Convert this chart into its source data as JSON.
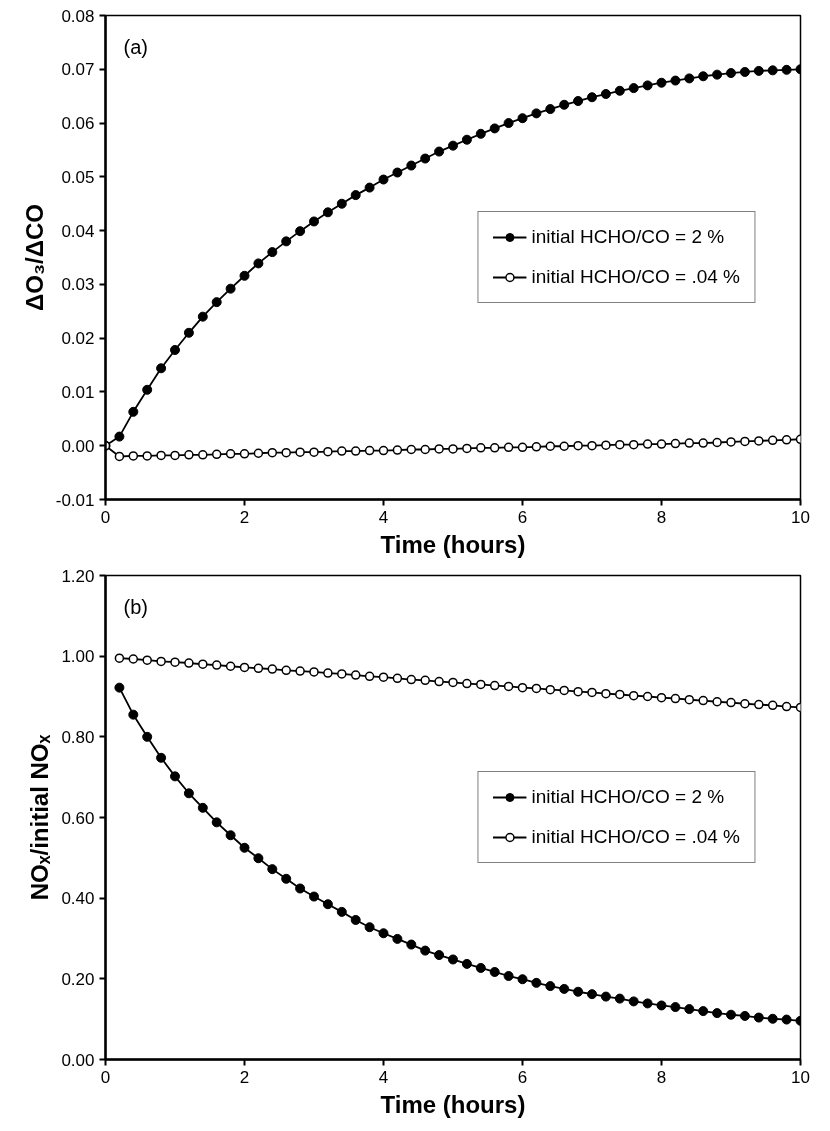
{
  "chart_data": [
    {
      "type": "line",
      "annotations": [
        "(a)"
      ],
      "xlabel": "Time (hours)",
      "ylabel": "ΔO₃/ΔCO",
      "xlim": [
        0,
        10
      ],
      "xticks": [
        0,
        2,
        4,
        6,
        8,
        10
      ],
      "ylim": [
        -0.01,
        0.08
      ],
      "yticks": [
        {
          "value": -0.01,
          "label": "-0.01"
        },
        {
          "value": 0,
          "label": "0.00"
        },
        {
          "value": 0.01,
          "label": "0.01"
        },
        {
          "value": 0.02,
          "label": "0.02"
        },
        {
          "value": 0.03,
          "label": "0.03"
        },
        {
          "value": 0.04,
          "label": "0.04"
        },
        {
          "value": 0.05,
          "label": "0.05"
        },
        {
          "value": 0.06,
          "label": "0.06"
        },
        {
          "value": 0.07,
          "label": "0.07"
        },
        {
          "value": 0.08,
          "label": "0.08"
        }
      ],
      "grid": false,
      "legend": "right",
      "line_style": "solid",
      "x": [
        0,
        0.2,
        0.4,
        0.6,
        0.8,
        1,
        1.2,
        1.4,
        1.6,
        1.8,
        2,
        2.2,
        2.4,
        2.6,
        2.8,
        3,
        3.2,
        3.4,
        3.6,
        3.8,
        4,
        4.2,
        4.4,
        4.6,
        4.8,
        5,
        5.2,
        5.4,
        5.6,
        5.8,
        6,
        6.2,
        6.4,
        6.6,
        6.8,
        7,
        7.2,
        7.4,
        7.6,
        7.8,
        8,
        8.2,
        8.4,
        8.6,
        8.8,
        9,
        9.2,
        9.4,
        9.6,
        9.8,
        10
      ],
      "series": [
        {
          "name": "initial HCHO/CO = 2 %",
          "color": "#000000",
          "marker": "circle",
          "values": [
            0,
            0.0017,
            0.0063,
            0.0104,
            0.0144,
            0.0178,
            0.021,
            0.024,
            0.0267,
            0.0292,
            0.0316,
            0.0339,
            0.036,
            0.038,
            0.0399,
            0.0417,
            0.0434,
            0.045,
            0.0466,
            0.048,
            0.0495,
            0.0508,
            0.0521,
            0.0534,
            0.0547,
            0.0558,
            0.0569,
            0.058,
            0.059,
            0.06,
            0.0609,
            0.0618,
            0.0626,
            0.0634,
            0.0641,
            0.0648,
            0.0654,
            0.066,
            0.0665,
            0.067,
            0.0675,
            0.0679,
            0.0683,
            0.0687,
            0.069,
            0.0693,
            0.0695,
            0.0697,
            0.0698,
            0.0699,
            0.07
          ]
        },
        {
          "name": "initial HCHO/CO = .04 %",
          "color": "#000000",
          "marker": "circle_open",
          "values": [
            0,
            -0.002,
            -0.0019,
            -0.0019,
            -0.0018,
            -0.0018,
            -0.0017,
            -0.0017,
            -0.0016,
            -0.0015,
            -0.0015,
            -0.0014,
            -0.0013,
            -0.0013,
            -0.0012,
            -0.0012,
            -0.0011,
            -0.001,
            -0.001,
            -0.0009,
            -0.0009,
            -0.0008,
            -0.0007,
            -0.0007,
            -0.0006,
            -0.0006,
            -0.0005,
            -0.0004,
            -0.0004,
            -0.0003,
            -0.0003,
            -0.0002,
            -0.0001,
            -0.0001,
            0,
            0,
            0.0001,
            0.0002,
            0.0002,
            0.0003,
            0.0003,
            0.0004,
            0.0005,
            0.0005,
            0.0006,
            0.0007,
            0.0008,
            0.0009,
            0.001,
            0.0011,
            0.0012
          ]
        }
      ]
    },
    {
      "type": "line",
      "annotations": [
        "(b)"
      ],
      "xlabel": "Time (hours)",
      "ylabel": "NOₓ/initial NOₓ",
      "xlim": [
        0,
        10
      ],
      "xticks": [
        0,
        2,
        4,
        6,
        8,
        10
      ],
      "ylim": [
        0,
        1.2
      ],
      "yticks": [
        {
          "value": 0,
          "label": "0.00"
        },
        {
          "value": 0.2,
          "label": "0.20"
        },
        {
          "value": 0.4,
          "label": "0.40"
        },
        {
          "value": 0.6,
          "label": "0.60"
        },
        {
          "value": 0.8,
          "label": "0.80"
        },
        {
          "value": 1,
          "label": "1.00"
        },
        {
          "value": 1.2,
          "label": "1.20"
        }
      ],
      "grid": false,
      "legend": "right",
      "line_style": "solid",
      "x": [
        0.2,
        0.4,
        0.6,
        0.8,
        1,
        1.2,
        1.4,
        1.6,
        1.8,
        2,
        2.2,
        2.4,
        2.6,
        2.8,
        3,
        3.2,
        3.4,
        3.6,
        3.8,
        4,
        4.2,
        4.4,
        4.6,
        4.8,
        5,
        5.2,
        5.4,
        5.6,
        5.8,
        6,
        6.2,
        6.4,
        6.6,
        6.8,
        7,
        7.2,
        7.4,
        7.6,
        7.8,
        8,
        8.2,
        8.4,
        8.6,
        8.8,
        9,
        9.2,
        9.4,
        9.6,
        9.8,
        10
      ],
      "series": [
        {
          "name": "initial HCHO/CO = 2 %",
          "color": "#000000",
          "marker": "circle",
          "values": [
            0.922,
            0.855,
            0.8,
            0.748,
            0.702,
            0.66,
            0.624,
            0.588,
            0.556,
            0.525,
            0.499,
            0.472,
            0.448,
            0.424,
            0.404,
            0.385,
            0.366,
            0.346,
            0.328,
            0.313,
            0.299,
            0.285,
            0.27,
            0.259,
            0.248,
            0.237,
            0.227,
            0.217,
            0.207,
            0.199,
            0.19,
            0.182,
            0.175,
            0.168,
            0.162,
            0.156,
            0.151,
            0.144,
            0.139,
            0.134,
            0.13,
            0.125,
            0.12,
            0.115,
            0.111,
            0.108,
            0.104,
            0.101,
            0.099,
            0.096
          ]
        },
        {
          "name": "initial HCHO/CO = .04 %",
          "color": "#000000",
          "marker": "circle_open",
          "values": [
            0.995,
            0.993,
            0.99,
            0.987,
            0.985,
            0.983,
            0.98,
            0.978,
            0.975,
            0.972,
            0.97,
            0.968,
            0.965,
            0.963,
            0.961,
            0.958,
            0.956,
            0.953,
            0.95,
            0.948,
            0.945,
            0.942,
            0.94,
            0.937,
            0.935,
            0.932,
            0.93,
            0.927,
            0.925,
            0.922,
            0.92,
            0.917,
            0.915,
            0.912,
            0.91,
            0.907,
            0.905,
            0.902,
            0.9,
            0.897,
            0.895,
            0.892,
            0.89,
            0.887,
            0.885,
            0.882,
            0.88,
            0.878,
            0.875,
            0.873
          ]
        }
      ]
    }
  ]
}
